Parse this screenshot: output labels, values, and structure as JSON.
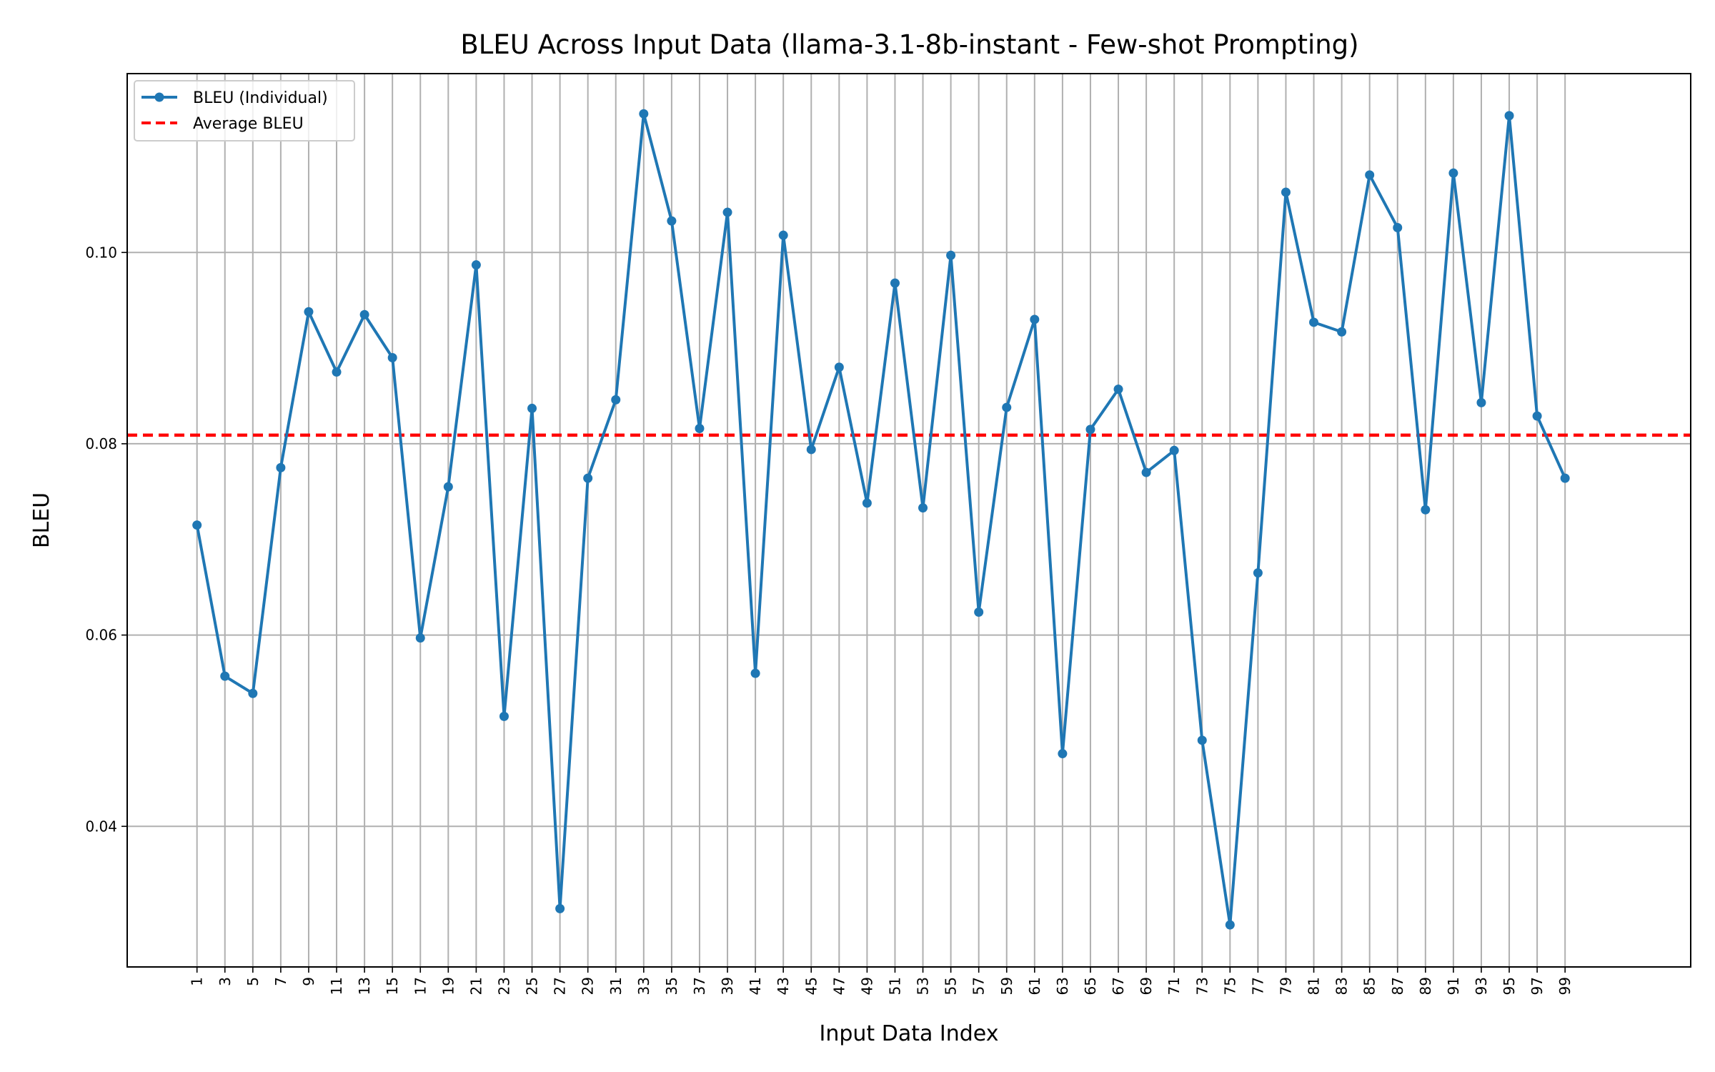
{
  "chart_data": {
    "type": "line",
    "title": "BLEU Across Input Data (llama-3.1-8b-instant - Few-shot Prompting)",
    "xlabel": "Input Data Index",
    "ylabel": "BLEU",
    "x": [
      1,
      3,
      5,
      7,
      9,
      11,
      13,
      15,
      17,
      19,
      21,
      23,
      25,
      27,
      29,
      31,
      33,
      35,
      37,
      39,
      41,
      43,
      45,
      47,
      49,
      51,
      53,
      55,
      57,
      59,
      61,
      63,
      65,
      67,
      69,
      71,
      73,
      75,
      77,
      79,
      81,
      83,
      85,
      87,
      89,
      91,
      93,
      95,
      97,
      99
    ],
    "xticks": [
      "1",
      "3",
      "5",
      "7",
      "9",
      "11",
      "13",
      "15",
      "17",
      "19",
      "21",
      "23",
      "25",
      "27",
      "29",
      "31",
      "33",
      "35",
      "37",
      "39",
      "41",
      "43",
      "45",
      "47",
      "49",
      "51",
      "53",
      "55",
      "57",
      "59",
      "61",
      "63",
      "65",
      "67",
      "69",
      "71",
      "73",
      "75",
      "77",
      "79",
      "81",
      "83",
      "85",
      "87",
      "89",
      "91",
      "93",
      "95",
      "97",
      "99"
    ],
    "xlim": [
      -4,
      108
    ],
    "ylim": [
      0.0253,
      0.1187
    ],
    "yticks": [
      0.04,
      0.06,
      0.08,
      0.1
    ],
    "ytick_labels": [
      "0.04",
      "0.06",
      "0.08",
      "0.10"
    ],
    "grid": true,
    "legend_position": "upper-left",
    "series": [
      {
        "name": "BLEU (Individual)",
        "color": "#1f77b4",
        "marker": "circle",
        "values": [
          0.0715,
          0.0557,
          0.0539,
          0.0775,
          0.0938,
          0.0875,
          0.0935,
          0.089,
          0.0597,
          0.0755,
          0.0987,
          0.0515,
          0.0837,
          0.0314,
          0.0764,
          0.0846,
          0.1145,
          0.1033,
          0.0816,
          0.1042,
          0.056,
          0.1018,
          0.0794,
          0.088,
          0.0738,
          0.0968,
          0.0733,
          0.0997,
          0.0624,
          0.0838,
          0.093,
          0.0476,
          0.0815,
          0.0857,
          0.077,
          0.0793,
          0.049,
          0.0297,
          0.0665,
          0.1063,
          0.0927,
          0.0917,
          0.1081,
          0.1026,
          0.0731,
          0.1083,
          0.0843,
          0.1143,
          0.0829,
          0.0764
        ]
      },
      {
        "name": "Average BLEU",
        "color": "#ff0000",
        "style": "dashed",
        "value": 0.0809
      }
    ]
  }
}
